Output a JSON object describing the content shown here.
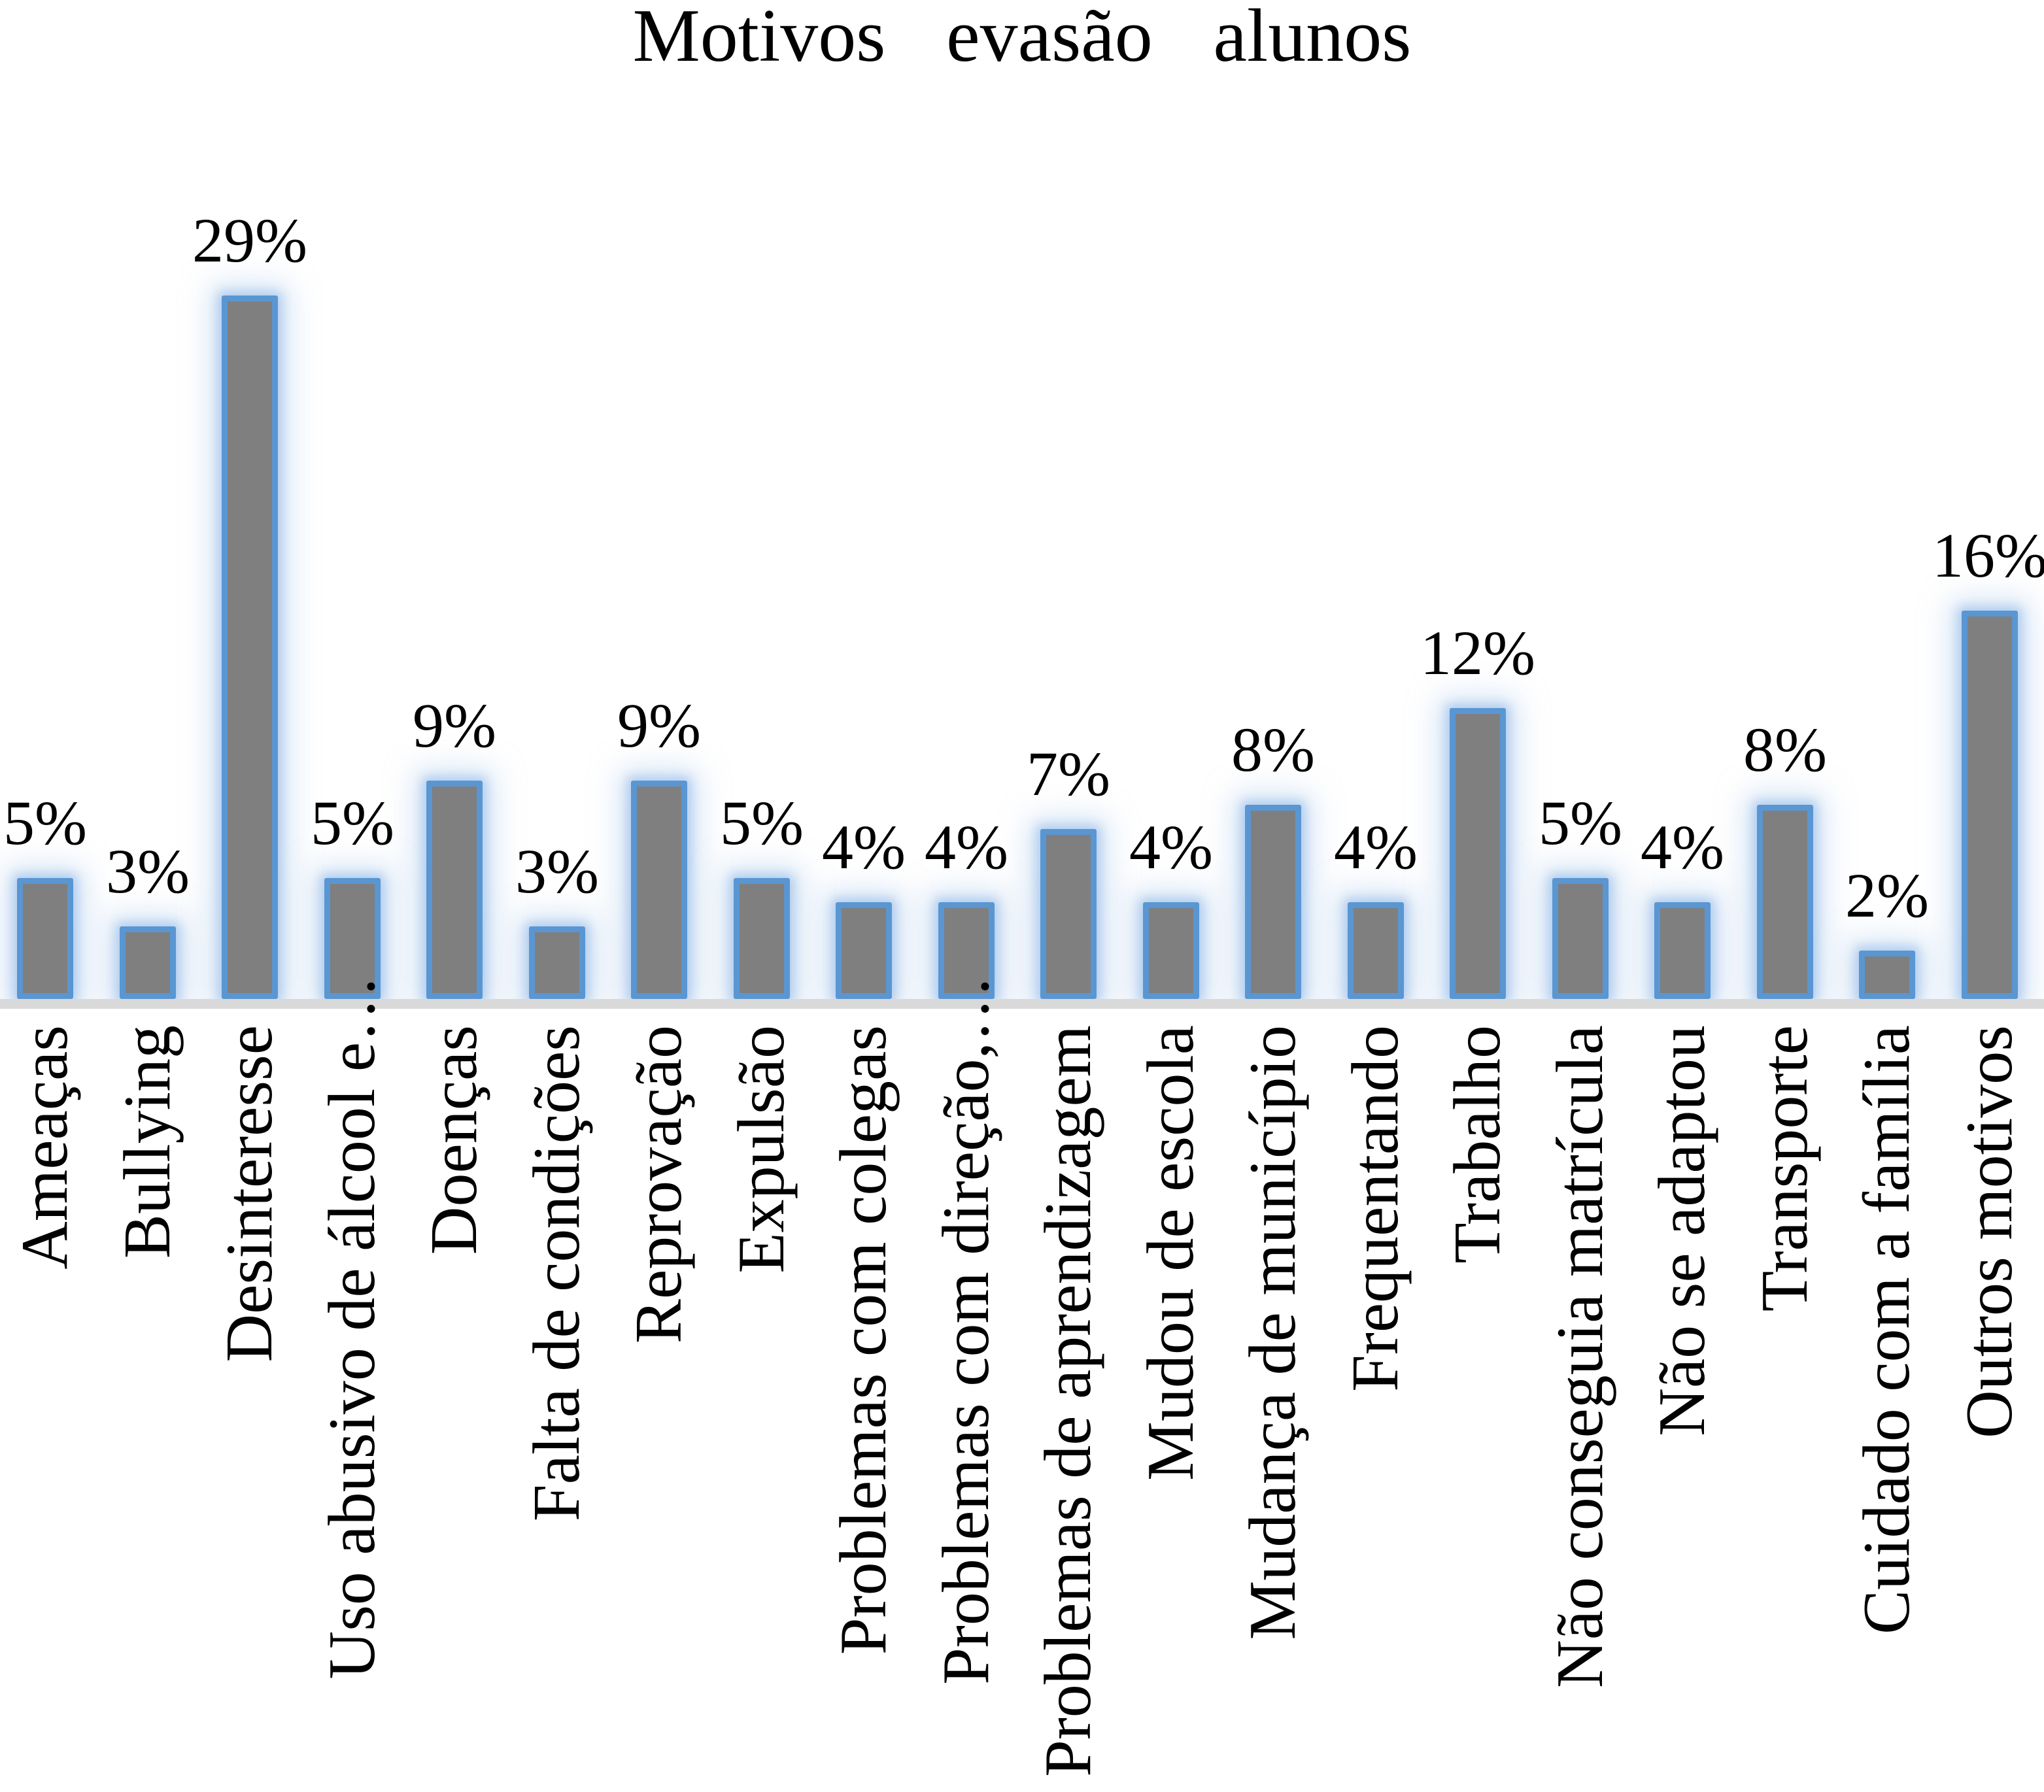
{
  "chart_data": {
    "type": "bar",
    "title": "Motivos evasão alunos",
    "categories": [
      "Ameaças",
      "Bullying",
      "Desinteresse",
      "Uso abusivo de álcool e…",
      "Doenças",
      "Falta de condições",
      "Reprovação",
      "Expulsão",
      "Problemas com colegas",
      "Problemas com direção,…",
      "Problemas de aprendizagem",
      "Mudou de escola",
      "Mudança de município",
      "Frequentando",
      "Trabalho",
      "Não conseguia matrícula",
      "Não se adaptou",
      "Transporte",
      "Cuidado com a família",
      "Outros motivos"
    ],
    "values": [
      5,
      3,
      29,
      5,
      9,
      3,
      9,
      5,
      4,
      4,
      7,
      4,
      8,
      4,
      12,
      5,
      4,
      8,
      2,
      16
    ],
    "data_labels": [
      "5%",
      "3%",
      "29%",
      "5%",
      "9%",
      "3%",
      "9%",
      "5%",
      "4%",
      "4%",
      "7%",
      "4%",
      "8%",
      "4%",
      "12%",
      "5%",
      "4%",
      "8%",
      "2%",
      "16%"
    ],
    "unit": "%",
    "xlabel": "",
    "ylabel": "",
    "legend": "none",
    "grid": false,
    "value_axis": "hidden",
    "truncated_category_indices": [
      3,
      9
    ],
    "colors": {
      "bar_fill": "#7f7f7f",
      "bar_border": "#5a96d2",
      "bar_glow": "#aecbee",
      "axis_line": "#d9d9d9",
      "text": "#000000",
      "background": "#ffffff"
    }
  }
}
